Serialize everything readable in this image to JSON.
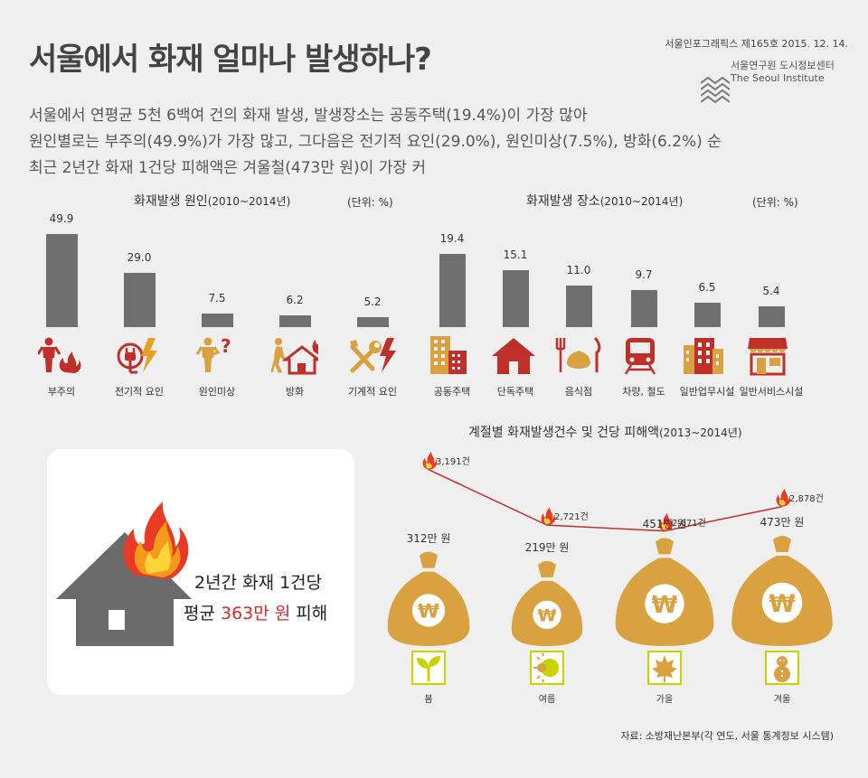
{
  "header": {
    "title": "서울에서 화재 얼마나 발생하나?",
    "issue": "서울인포그래픽스 제165호 2015. 12. 14.",
    "institute_kr": "서울연구원 도시정보센터",
    "institute_en": "The Seoul Institute"
  },
  "summary": [
    "서울에서 연평균 5천 6백여 건의 화재 발생, 발생장소는 공동주택(19.4%)이 가장 많아",
    "원인별로는 부주의(49.9%)가 가장 많고, 그다음은 전기적 요인(29.0%), 원인미상(7.5%), 방화(6.2%) 순",
    "최근 2년간 화재 1건당 피해액은 겨울철(473만 원)이 가장 커"
  ],
  "colors": {
    "bar": "#6f6f6f",
    "icon": "#c0302b",
    "accent": "#e0262a",
    "bag": "#d9a13f",
    "line": "#c0302b",
    "season_border": "#c8d300"
  },
  "chart_data": [
    {
      "type": "bar",
      "title": "화재발생 원인",
      "period": "(2010~2014년)",
      "unit": "(단위: %)",
      "categories": [
        "부주의",
        "전기적 요인",
        "원인미상",
        "방화",
        "기계적 요인"
      ],
      "values": [
        49.9,
        29.0,
        7.5,
        6.2,
        5.2
      ],
      "value_labels": [
        "49.9",
        "29.0",
        "7.5",
        "6.2",
        "5.2"
      ],
      "icons": [
        "person-fire-icon",
        "plug-lightning-icon",
        "person-question-icon",
        "arson-house-icon",
        "wrench-lightning-icon"
      ]
    },
    {
      "type": "bar",
      "title": "화재발생 장소",
      "period": "(2010~2014년)",
      "unit": "(단위: %)",
      "categories": [
        "공동주택",
        "단독주택",
        "음식점",
        "차량, 철도",
        "일반업무시설",
        "일반서비스시설"
      ],
      "values": [
        19.4,
        15.1,
        11.0,
        9.7,
        6.5,
        5.4
      ],
      "value_labels": [
        "19.4",
        "15.1",
        "11.0",
        "9.7",
        "6.5",
        "5.4"
      ],
      "icons": [
        "apartment-icon",
        "house-icon",
        "dining-icon",
        "train-icon",
        "office-building-icon",
        "shop-icon"
      ]
    },
    {
      "type": "line",
      "title": "계절별 화재발생건수 및 건당 피해액",
      "period": "(2013~2014년)",
      "categories": [
        "봄",
        "여름",
        "가을",
        "겨울"
      ],
      "series": [
        {
          "name": "화재발생건수",
          "values": [
            3191,
            2721,
            2671,
            2878
          ],
          "labels": [
            "3,191건",
            "2,721건",
            "2,671건",
            "2,878건"
          ]
        },
        {
          "name": "건당 피해액",
          "values": [
            312,
            219,
            451,
            473
          ],
          "labels": [
            "312만 원",
            "219만 원",
            "451만 원",
            "473만 원"
          ]
        }
      ],
      "icons": [
        "sprout-icon",
        "sun-icon",
        "maple-leaf-icon",
        "snowman-icon"
      ]
    }
  ],
  "card": {
    "line1": "2년간 화재 1건당",
    "line2_pre": "평균 ",
    "line2_highlight": "363만 원",
    "line2_post": " 피해"
  },
  "source": "자료: 소방재난본부(각 연도, 서울 통계정보 시스템)"
}
